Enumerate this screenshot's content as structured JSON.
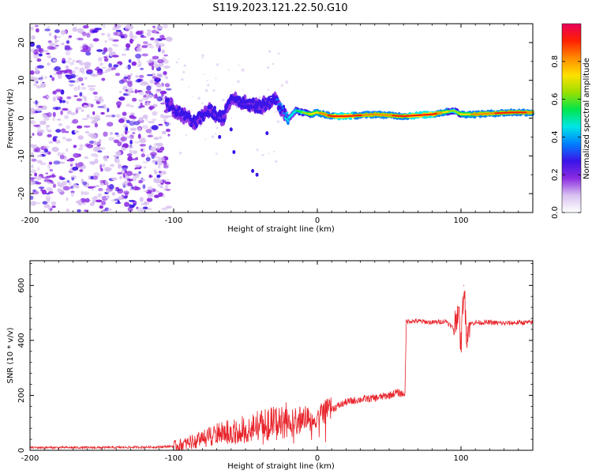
{
  "title": "S119.2023.121.22.50.G10",
  "chart_data": [
    {
      "type": "heatmap",
      "xlabel": "Height of straight line (km)",
      "ylabel": "Frequency (Hz)",
      "xlim": [
        -200,
        150
      ],
      "ylim": [
        -25,
        25
      ],
      "xticks": [
        "-200",
        "-100",
        "0",
        "100"
      ],
      "yticks": [
        "-20",
        "-10",
        "0",
        "10",
        "20"
      ],
      "colorbar": {
        "label": "Normalized spectral amplitude",
        "range": [
          0,
          1
        ],
        "ticks": [
          "0.0",
          "0.2",
          "0.4",
          "0.6",
          "0.8"
        ],
        "colors": [
          "#ffffff",
          "#d9c2f0",
          "#8a2be2",
          "#3a14e8",
          "#0080ff",
          "#00e6e6",
          "#00e64d",
          "#9be000",
          "#ffe000",
          "#ff8c00",
          "#ff2000",
          "#e8005a"
        ]
      },
      "noise_region_x": [
        -200,
        -102
      ],
      "ridge": {
        "x": [
          -105,
          -95,
          -85,
          -75,
          -65,
          -60,
          -50,
          -40,
          -30,
          -20,
          -15,
          -5,
          0,
          10,
          20,
          40,
          60,
          80,
          95,
          100,
          110,
          120,
          135,
          150
        ],
        "freq": [
          4,
          1,
          -1,
          2,
          0,
          6,
          4,
          3,
          5,
          0,
          2,
          1,
          1.5,
          0.5,
          0.5,
          1,
          0.5,
          1,
          2,
          1,
          1,
          1.2,
          1.5,
          1.5
        ],
        "amplitude": [
          0.25,
          0.2,
          0.25,
          0.25,
          0.3,
          0.2,
          0.25,
          0.3,
          0.3,
          0.45,
          0.5,
          0.7,
          0.75,
          0.9,
          0.95,
          0.8,
          0.9,
          0.95,
          0.6,
          0.7,
          0.8,
          0.85,
          0.9,
          0.85
        ]
      }
    },
    {
      "type": "line",
      "xlabel": "Height of straight line (km)",
      "ylabel": "SNR (10 * v/v)",
      "xlim": [
        -200,
        150
      ],
      "ylim": [
        0,
        690
      ],
      "xticks": [
        "-200",
        "-100",
        "0",
        "100"
      ],
      "yticks": [
        "0",
        "200",
        "400",
        "600"
      ],
      "series": [
        {
          "color": "#e8232a",
          "x": [
            -200,
            -150,
            -110,
            -100,
            -90,
            -80,
            -70,
            -60,
            -50,
            -40,
            -30,
            -20,
            -10,
            0,
            10,
            20,
            30,
            40,
            50,
            55,
            60,
            61,
            62,
            70,
            80,
            90,
            95,
            98,
            100,
            102,
            104,
            106,
            110,
            120,
            130,
            140,
            150
          ],
          "y": [
            10,
            10,
            12,
            15,
            25,
            40,
            60,
            70,
            80,
            90,
            100,
            110,
            115,
            130,
            150,
            175,
            185,
            190,
            200,
            210,
            205,
            210,
            470,
            470,
            465,
            470,
            440,
            520,
            380,
            600,
            420,
            460,
            465,
            465,
            462,
            465,
            465
          ]
        }
      ]
    }
  ]
}
